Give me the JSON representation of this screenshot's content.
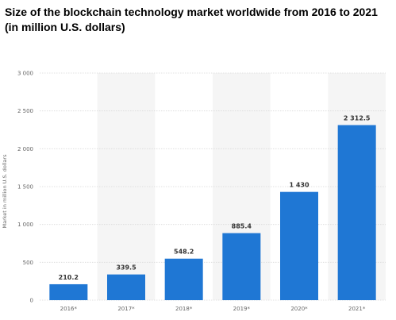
{
  "title_line1": "Size of the blockchain technology market worldwide from 2016 to 2021",
  "title_line2": "(in million U.S. dollars)",
  "chart_data": {
    "type": "bar",
    "categories": [
      "2016*",
      "2017*",
      "2018*",
      "2019*",
      "2020*",
      "2021*"
    ],
    "values": [
      210.2,
      339.5,
      548.2,
      885.4,
      1430,
      2312.5
    ],
    "value_labels": [
      "210.2",
      "339.5",
      "548.2",
      "885.4",
      "1 430",
      "2 312.5"
    ],
    "ylabel": "Market in million U.S. dollars",
    "ylim": [
      0,
      3000
    ],
    "yticks": [
      0,
      500,
      1000,
      1500,
      2000,
      2500,
      3000
    ],
    "ytick_labels": [
      "0",
      "500",
      "1 000",
      "1 500",
      "2 000",
      "2 500",
      "3 000"
    ],
    "grid": true,
    "bar_color": "#1f77d4",
    "band_color": "#f5f5f5"
  }
}
